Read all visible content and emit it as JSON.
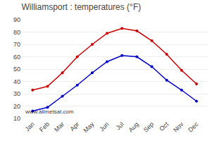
{
  "chart_data": {
    "type": "line",
    "title": "Williamsport : temperatures (°F)",
    "categories": [
      "Jan",
      "Feb",
      "Mar",
      "Apr",
      "May",
      "Jun",
      "Jul",
      "Aug",
      "Sep",
      "Oct",
      "Nov",
      "Dec"
    ],
    "series": [
      {
        "color": "#cc0000",
        "marker": "circle",
        "values": [
          33,
          36,
          47,
          60,
          70,
          79,
          83,
          81,
          73,
          62,
          49,
          38
        ]
      },
      {
        "color": "#0000cc",
        "marker": "circle",
        "values": [
          16,
          19,
          28,
          37,
          47,
          56,
          61,
          60,
          52,
          41,
          33,
          24
        ]
      }
    ],
    "ylim": [
      10,
      90
    ],
    "yticks": [
      10,
      20,
      30,
      40,
      50,
      60,
      70,
      80,
      90
    ],
    "grid": true,
    "annotations": [
      "www.allmetsat.com"
    ]
  }
}
